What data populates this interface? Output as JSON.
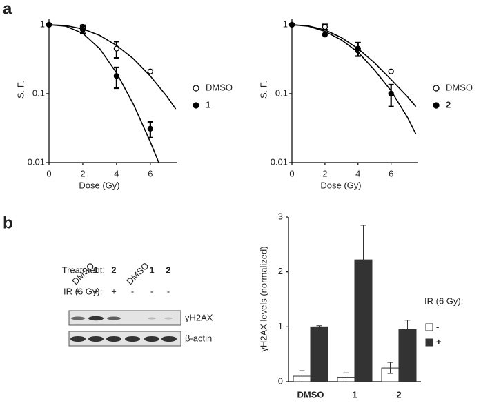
{
  "panels": [
    "a",
    "b"
  ],
  "chart_data": [
    {
      "type": "scatter",
      "ylog": true,
      "xlabel": "Dose (Gy)",
      "ylabel": "S. F.",
      "xlim": [
        0,
        7.6
      ],
      "xticks": [
        0,
        2,
        4,
        6
      ],
      "ylim": [
        0.01,
        1.2
      ],
      "yticks": [
        0.01,
        0.1,
        1
      ],
      "series": [
        {
          "name": "DMSO",
          "marker": "open",
          "color": "#000",
          "x": [
            0,
            2,
            4,
            6
          ],
          "values": [
            1,
            0.93,
            0.45,
            0.21
          ],
          "errors": [
            null,
            0.05,
            0.12,
            null
          ]
        },
        {
          "name": "1",
          "marker": "filled",
          "color": "#000",
          "x": [
            0,
            2,
            4,
            6
          ],
          "values": [
            1,
            0.85,
            0.18,
            0.031
          ],
          "errors": [
            null,
            0.1,
            0.06,
            0.008
          ]
        },
        {
          "line": true,
          "color": "#000",
          "x": [
            0,
            1,
            2,
            3,
            4,
            5,
            6,
            7,
            7.5
          ],
          "values": [
            1,
            0.97,
            0.87,
            0.7,
            0.5,
            0.32,
            0.18,
            0.09,
            0.06
          ]
        },
        {
          "line": true,
          "color": "#000",
          "x": [
            0,
            1,
            2,
            3,
            4,
            5,
            6,
            6.5
          ],
          "values": [
            1,
            0.95,
            0.75,
            0.45,
            0.2,
            0.07,
            0.02,
            0.01
          ]
        }
      ]
    },
    {
      "type": "scatter",
      "ylog": true,
      "xlabel": "Dose (Gy)",
      "ylabel": "S. F.",
      "xlim": [
        0,
        7.6
      ],
      "xticks": [
        0,
        2,
        4,
        6
      ],
      "ylim": [
        0.01,
        1.2
      ],
      "yticks": [
        0.01,
        0.1,
        1
      ],
      "series": [
        {
          "name": "DMSO",
          "marker": "open",
          "color": "#000",
          "x": [
            0,
            2,
            4,
            6
          ],
          "values": [
            1,
            0.93,
            0.42,
            0.21
          ],
          "errors": [
            null,
            0.08,
            null,
            null
          ]
        },
        {
          "name": "2",
          "marker": "filled",
          "color": "#000",
          "x": [
            0,
            2,
            4,
            6
          ],
          "values": [
            1,
            0.72,
            0.45,
            0.1
          ],
          "errors": [
            null,
            null,
            0.1,
            0.035
          ]
        },
        {
          "line": true,
          "color": "#000",
          "x": [
            0,
            1,
            2,
            3,
            4,
            5,
            6,
            7,
            7.5
          ],
          "values": [
            1,
            0.96,
            0.84,
            0.65,
            0.45,
            0.28,
            0.16,
            0.09,
            0.065
          ]
        },
        {
          "line": true,
          "color": "#000",
          "x": [
            0,
            1,
            2,
            3,
            4,
            5,
            6,
            7,
            7.5
          ],
          "values": [
            1,
            0.95,
            0.8,
            0.6,
            0.4,
            0.22,
            0.11,
            0.045,
            0.026
          ]
        }
      ]
    },
    {
      "type": "bar",
      "ylabel": "γH2AX levels (normalized)",
      "legend_title": "IR (6 Gy):",
      "categories": [
        "DMSO",
        "1",
        "2"
      ],
      "ylim": [
        0,
        3
      ],
      "yticks": [
        0,
        1,
        2,
        3
      ],
      "series": [
        {
          "name": "-",
          "color": "#ffffff",
          "values": [
            0.1,
            0.08,
            0.25
          ],
          "errors": [
            0.1,
            0.08,
            0.1
          ]
        },
        {
          "name": "+",
          "color": "#333333",
          "values": [
            1.0,
            2.22,
            0.95
          ],
          "errors": [
            0.02,
            0.63,
            0.17
          ]
        }
      ]
    }
  ],
  "blot": {
    "treatment_label": "Treatment:",
    "lanes": [
      "DMSO",
      "1",
      "2",
      "DMSO",
      "1",
      "2"
    ],
    "ir_label": "IR (6 Gy):",
    "ir": [
      "+",
      "+",
      "+",
      "-",
      "-",
      "-"
    ],
    "bands": [
      "γH2AX",
      "β-actin"
    ]
  }
}
